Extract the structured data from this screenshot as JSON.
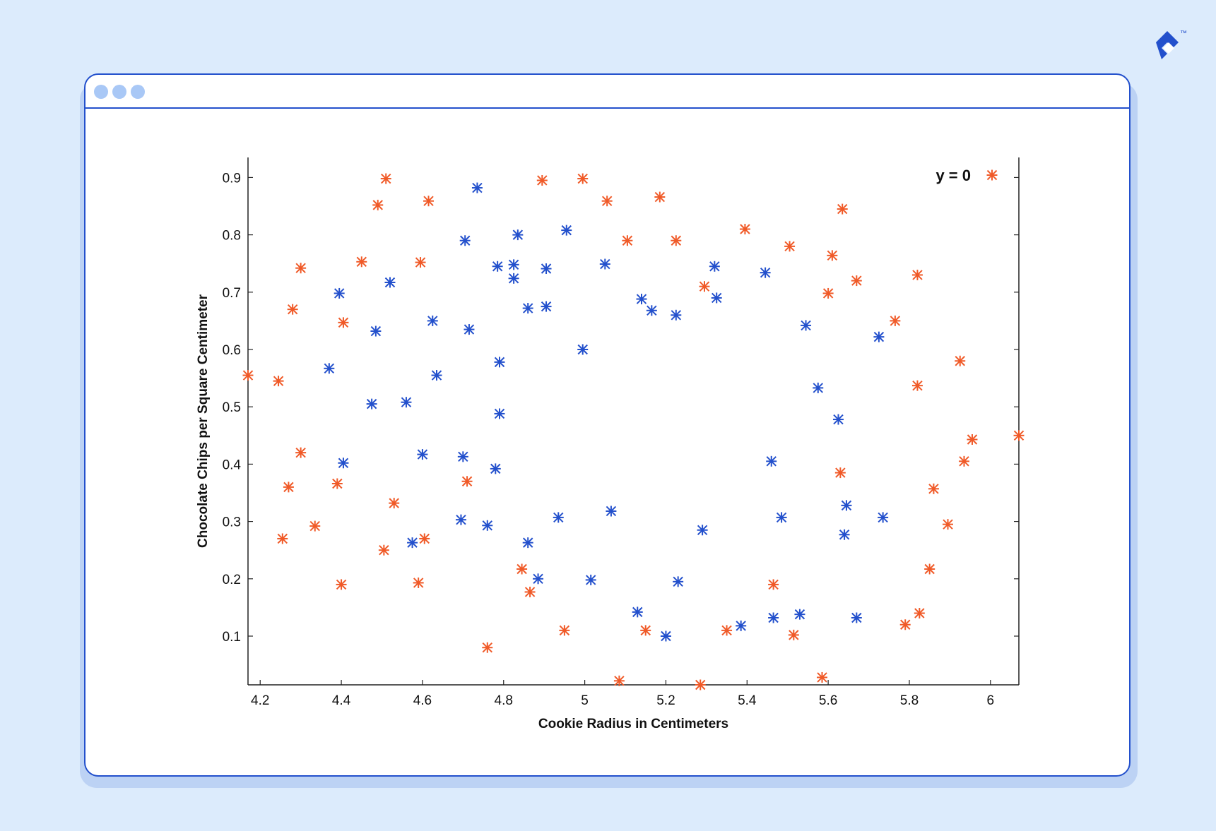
{
  "window": {
    "controls": [
      "window-dot-1",
      "window-dot-2",
      "window-dot-3"
    ]
  },
  "colors": {
    "class_a": "#f05a28",
    "class_b": "#2350cc",
    "frame": "#2350cc",
    "background": "#dcebfc"
  },
  "brand": {
    "icon": "brand-logo-icon",
    "trademark": "™"
  },
  "chart_data": {
    "type": "scatter",
    "title": "",
    "xlabel": "Cookie Radius in Centimeters",
    "ylabel": "Chocolate Chips per Square Centimeter",
    "xlim": [
      4.17,
      6.07
    ],
    "ylim": [
      0.015,
      0.935
    ],
    "xticks": [
      4.2,
      4.4,
      4.6,
      4.8,
      5,
      5.2,
      5.4,
      5.6,
      5.8,
      6
    ],
    "xtick_labels": [
      "4.2",
      "4.4",
      "4.6",
      "4.8",
      "5",
      "5.2",
      "5.4",
      "5.6",
      "5.8",
      "6"
    ],
    "yticks": [
      0.1,
      0.2,
      0.3,
      0.4,
      0.5,
      0.6,
      0.7,
      0.8,
      0.9
    ],
    "ytick_labels": [
      "0.1",
      "0.2",
      "0.3",
      "0.4",
      "0.5",
      "0.6",
      "0.7",
      "0.8",
      "0.9"
    ],
    "grid": false,
    "legend": {
      "position": "top-right",
      "entries": [
        {
          "label": "y = 0",
          "marker": "asterisk",
          "series": 0
        }
      ]
    },
    "series": [
      {
        "marker": "asterisk",
        "color": "#f05a28",
        "points": [
          [
            4.17,
            0.555
          ],
          [
            4.245,
            0.545
          ],
          [
            4.255,
            0.27
          ],
          [
            4.27,
            0.36
          ],
          [
            4.28,
            0.67
          ],
          [
            4.3,
            0.742
          ],
          [
            4.3,
            0.42
          ],
          [
            4.335,
            0.292
          ],
          [
            4.39,
            0.366
          ],
          [
            4.4,
            0.19
          ],
          [
            4.405,
            0.647
          ],
          [
            4.45,
            0.753
          ],
          [
            4.49,
            0.852
          ],
          [
            4.505,
            0.25
          ],
          [
            4.51,
            0.898
          ],
          [
            4.53,
            0.332
          ],
          [
            4.59,
            0.193
          ],
          [
            4.595,
            0.752
          ],
          [
            4.605,
            0.27
          ],
          [
            4.615,
            0.859
          ],
          [
            4.71,
            0.37
          ],
          [
            4.76,
            0.08
          ],
          [
            4.845,
            0.217
          ],
          [
            4.865,
            0.177
          ],
          [
            4.895,
            0.895
          ],
          [
            4.95,
            0.11
          ],
          [
            4.995,
            0.898
          ],
          [
            5.055,
            0.859
          ],
          [
            5.085,
            0.022
          ],
          [
            5.105,
            0.79
          ],
          [
            5.15,
            0.11
          ],
          [
            5.185,
            0.866
          ],
          [
            5.225,
            0.79
          ],
          [
            5.285,
            0.015
          ],
          [
            5.295,
            0.71
          ],
          [
            5.35,
            0.11
          ],
          [
            5.395,
            0.81
          ],
          [
            5.465,
            0.19
          ],
          [
            5.505,
            0.78
          ],
          [
            5.515,
            0.102
          ],
          [
            5.585,
            0.028
          ],
          [
            5.6,
            0.698
          ],
          [
            5.61,
            0.764
          ],
          [
            5.63,
            0.385
          ],
          [
            5.635,
            0.845
          ],
          [
            5.67,
            0.72
          ],
          [
            5.765,
            0.65
          ],
          [
            5.79,
            0.12
          ],
          [
            5.82,
            0.537
          ],
          [
            5.82,
            0.73
          ],
          [
            5.825,
            0.14
          ],
          [
            5.85,
            0.217
          ],
          [
            5.86,
            0.357
          ],
          [
            5.895,
            0.295
          ],
          [
            5.925,
            0.58
          ],
          [
            5.935,
            0.405
          ],
          [
            5.955,
            0.443
          ],
          [
            6.07,
            0.45
          ]
        ]
      },
      {
        "marker": "asterisk",
        "color": "#2350cc",
        "points": [
          [
            4.37,
            0.567
          ],
          [
            4.395,
            0.698
          ],
          [
            4.405,
            0.402
          ],
          [
            4.475,
            0.505
          ],
          [
            4.485,
            0.632
          ],
          [
            4.52,
            0.717
          ],
          [
            4.56,
            0.508
          ],
          [
            4.575,
            0.263
          ],
          [
            4.6,
            0.417
          ],
          [
            4.625,
            0.65
          ],
          [
            4.635,
            0.555
          ],
          [
            4.695,
            0.303
          ],
          [
            4.7,
            0.413
          ],
          [
            4.705,
            0.79
          ],
          [
            4.715,
            0.635
          ],
          [
            4.735,
            0.882
          ],
          [
            4.76,
            0.293
          ],
          [
            4.78,
            0.392
          ],
          [
            4.785,
            0.745
          ],
          [
            4.79,
            0.578
          ],
          [
            4.79,
            0.488
          ],
          [
            4.825,
            0.748
          ],
          [
            4.825,
            0.724
          ],
          [
            4.835,
            0.8
          ],
          [
            4.86,
            0.672
          ],
          [
            4.86,
            0.263
          ],
          [
            4.885,
            0.2
          ],
          [
            4.905,
            0.741
          ],
          [
            4.905,
            0.675
          ],
          [
            4.935,
            0.307
          ],
          [
            4.955,
            0.808
          ],
          [
            4.995,
            0.6
          ],
          [
            5.015,
            0.198
          ],
          [
            5.05,
            0.749
          ],
          [
            5.065,
            0.318
          ],
          [
            5.13,
            0.142
          ],
          [
            5.14,
            0.688
          ],
          [
            5.165,
            0.668
          ],
          [
            5.2,
            0.1
          ],
          [
            5.225,
            0.66
          ],
          [
            5.23,
            0.195
          ],
          [
            5.29,
            0.285
          ],
          [
            5.32,
            0.745
          ],
          [
            5.325,
            0.69
          ],
          [
            5.385,
            0.118
          ],
          [
            5.445,
            0.734
          ],
          [
            5.46,
            0.405
          ],
          [
            5.465,
            0.132
          ],
          [
            5.485,
            0.307
          ],
          [
            5.53,
            0.138
          ],
          [
            5.545,
            0.642
          ],
          [
            5.575,
            0.533
          ],
          [
            5.625,
            0.478
          ],
          [
            5.64,
            0.277
          ],
          [
            5.645,
            0.328
          ],
          [
            5.67,
            0.132
          ],
          [
            5.725,
            0.622
          ],
          [
            5.735,
            0.307
          ]
        ]
      }
    ]
  }
}
